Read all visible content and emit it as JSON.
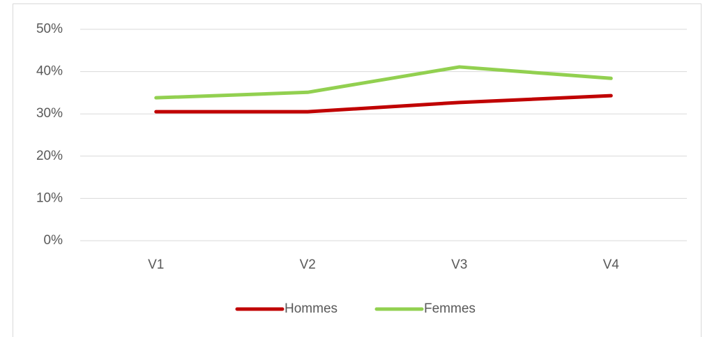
{
  "chart_data": {
    "type": "line",
    "categories": [
      "V1",
      "V2",
      "V3",
      "V4"
    ],
    "series": [
      {
        "name": "Hommes",
        "color": "#c00000",
        "values": [
          30.5,
          30.5,
          32.7,
          34.3
        ]
      },
      {
        "name": "Femmes",
        "color": "#92d050",
        "values": [
          33.8,
          35.1,
          41.1,
          38.4
        ]
      }
    ],
    "ylim": [
      0,
      50
    ],
    "yticks": [
      {
        "value": 0,
        "label": "0%"
      },
      {
        "value": 10,
        "label": "10%"
      },
      {
        "value": 20,
        "label": "20%"
      },
      {
        "value": 30,
        "label": "30%"
      },
      {
        "value": 40,
        "label": "40%"
      },
      {
        "value": 50,
        "label": "50%"
      }
    ],
    "grid": true,
    "legend": "bottom"
  }
}
